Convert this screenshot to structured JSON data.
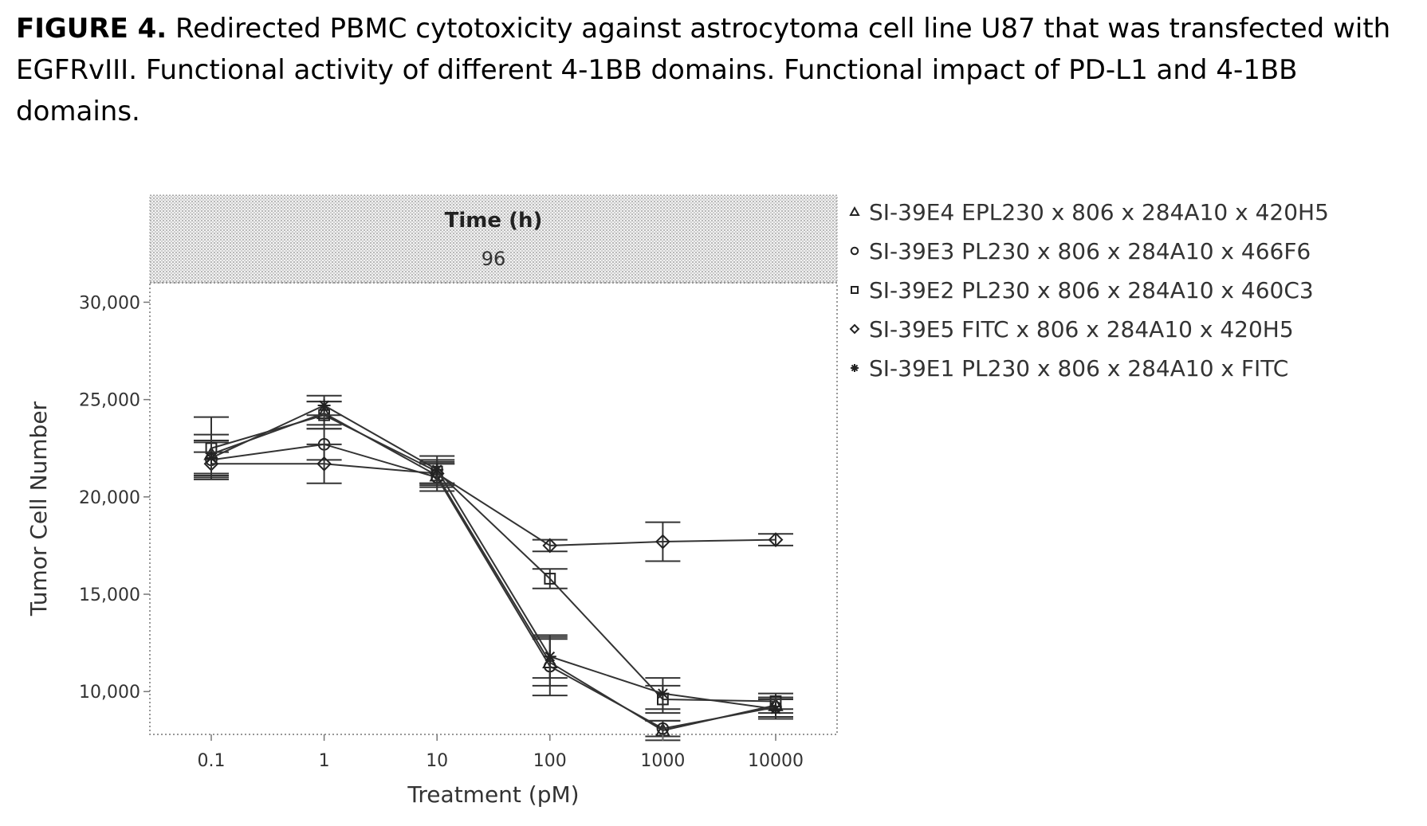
{
  "caption": {
    "label": "FIGURE 4.",
    "text": " Redirected PBMC cytotoxicity against astrocytoma cell line U87 that was transfected with EGFRvIII. Functional activity of different 4-1BB domains. Functional impact of PD-L1 and 4-1BB domains."
  },
  "chart_data": {
    "type": "line",
    "facet_title": "Time (h)",
    "facet_value": "96",
    "xlabel": "Treatment (pM)",
    "ylabel": "Tumor Cell Number",
    "categories": [
      "0.1",
      "1",
      "10",
      "100",
      "1000",
      "10000"
    ],
    "x_scale": "log",
    "ylim": [
      7800,
      31000
    ],
    "yticks": [
      10000,
      15000,
      20000,
      25000,
      30000
    ],
    "ytick_labels": [
      "10,000",
      "15,000",
      "20,000",
      "25,000",
      "30,000"
    ],
    "grid": false,
    "legend_position": "right",
    "series": [
      {
        "name": "SI-39E4 EPL230 x 806 x 284A10 x 420H5",
        "marker": "triangle",
        "values": [
          22200,
          24300,
          21100,
          11500,
          8000,
          9300
        ],
        "errors": [
          1000,
          600,
          600,
          1200,
          500,
          400
        ]
      },
      {
        "name": "SI-39E3 PL230 x 806 x 284A10 x 466F6",
        "marker": "circle",
        "values": [
          21900,
          22700,
          21000,
          11300,
          8100,
          9200
        ],
        "errors": [
          900,
          800,
          700,
          1500,
          400,
          500
        ]
      },
      {
        "name": "SI-39E2 PL230 x 806 x 284A10 x 460C3",
        "marker": "square",
        "values": [
          22500,
          24200,
          21300,
          15800,
          9600,
          9500
        ],
        "errors": [
          1600,
          700,
          600,
          500,
          700,
          400
        ]
      },
      {
        "name": "SI-39E5 FITC x 806 x 284A10 x 420H5",
        "marker": "diamond",
        "values": [
          21700,
          21700,
          21200,
          17500,
          17700,
          17800
        ],
        "errors": [
          600,
          1000,
          600,
          300,
          1000,
          300
        ]
      },
      {
        "name": "SI-39E1 PL230 x 806 x 284A10 x FITC",
        "marker": "star",
        "values": [
          22000,
          24700,
          21400,
          11800,
          9900,
          9100
        ],
        "errors": [
          900,
          500,
          700,
          1100,
          800,
          500
        ]
      }
    ]
  }
}
